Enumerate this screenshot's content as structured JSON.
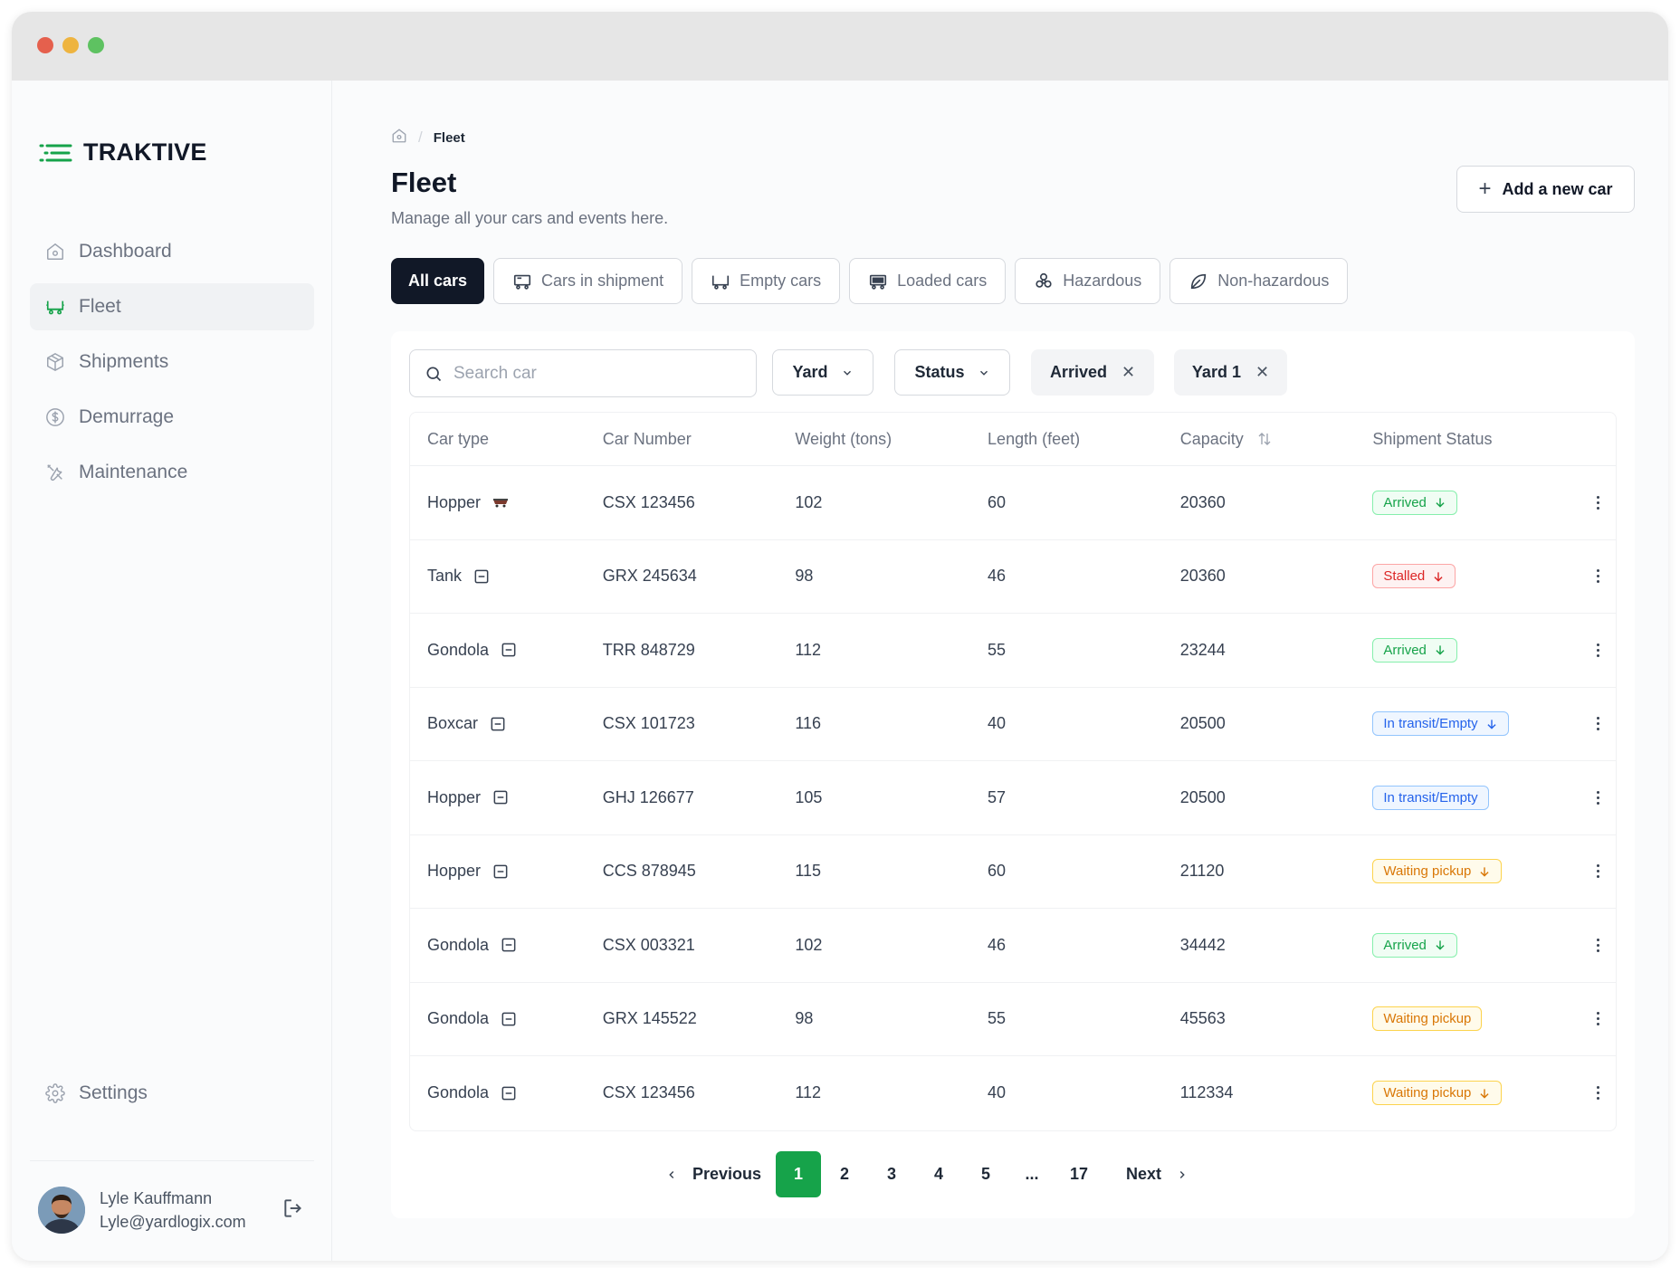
{
  "brand": {
    "name": "TRAKTIVE",
    "accent": "#16a34a"
  },
  "sidebar": {
    "items": [
      {
        "label": "Dashboard",
        "icon": "home-icon"
      },
      {
        "label": "Fleet",
        "icon": "train-car-icon"
      },
      {
        "label": "Shipments",
        "icon": "box-icon"
      },
      {
        "label": "Demurrage",
        "icon": "dollar-circle-icon"
      },
      {
        "label": "Maintenance",
        "icon": "tools-icon"
      }
    ],
    "active": "Fleet",
    "settings_label": "Settings",
    "user": {
      "name": "Lyle Kauffmann",
      "email": "Lyle@yardlogix.com"
    }
  },
  "breadcrumb": {
    "current": "Fleet"
  },
  "header": {
    "title": "Fleet",
    "subtitle": "Manage all your cars and events here.",
    "add_button": "Add a new car"
  },
  "tabs": [
    {
      "label": "All cars",
      "icon": "",
      "active": true
    },
    {
      "label": "Cars in shipment",
      "icon": "rail-car-icon",
      "active": false
    },
    {
      "label": "Empty cars",
      "icon": "rail-car-icon",
      "active": false
    },
    {
      "label": "Loaded cars",
      "icon": "rail-car-icon",
      "active": false
    },
    {
      "label": "Hazardous",
      "icon": "biohazard-icon",
      "active": false
    },
    {
      "label": "Non-hazardous",
      "icon": "leaf-icon",
      "active": false
    }
  ],
  "filters": {
    "search_placeholder": "Search car",
    "yard": "Yard",
    "status": "Status",
    "chips": [
      "Arrived",
      "Yard 1"
    ]
  },
  "table": {
    "columns": [
      "Car type",
      "Car Number",
      "Weight (tons)",
      "Length (feet)",
      "Capacity",
      "Shipment Status"
    ],
    "rows": [
      {
        "type": "Hopper",
        "number": "CSX 123456",
        "weight": "102",
        "length": "60",
        "capacity": "20360",
        "status": "Arrived",
        "status_kind": "green",
        "arrow": true
      },
      {
        "type": "Tank",
        "number": "GRX 245634",
        "weight": "98",
        "length": "46",
        "capacity": "20360",
        "status": "Stalled",
        "status_kind": "red",
        "arrow": true
      },
      {
        "type": "Gondola",
        "number": "TRR 848729",
        "weight": "112",
        "length": "55",
        "capacity": "23244",
        "status": "Arrived",
        "status_kind": "green",
        "arrow": true
      },
      {
        "type": "Boxcar",
        "number": "CSX 101723",
        "weight": "116",
        "length": "40",
        "capacity": "20500",
        "status": "In transit/Empty",
        "status_kind": "blue",
        "arrow": true
      },
      {
        "type": "Hopper",
        "number": "GHJ 126677",
        "weight": "105",
        "length": "57",
        "capacity": "20500",
        "status": "In transit/Empty",
        "status_kind": "blue",
        "arrow": false
      },
      {
        "type": "Hopper",
        "number": "CCS 878945",
        "weight": "115",
        "length": "60",
        "capacity": "21120",
        "status": "Waiting pickup",
        "status_kind": "orange",
        "arrow": true
      },
      {
        "type": "Gondola",
        "number": "CSX 003321",
        "weight": "102",
        "length": "46",
        "capacity": "34442",
        "status": "Arrived",
        "status_kind": "green",
        "arrow": true
      },
      {
        "type": "Gondola",
        "number": "GRX 145522",
        "weight": "98",
        "length": "55",
        "capacity": "45563",
        "status": "Waiting pickup",
        "status_kind": "orange",
        "arrow": false
      },
      {
        "type": "Gondola",
        "number": "CSX 123456",
        "weight": "112",
        "length": "40",
        "capacity": "112334",
        "status": "Waiting pickup",
        "status_kind": "orange",
        "arrow": true
      }
    ]
  },
  "status_colors": {
    "green": {
      "fg": "#16a34a",
      "bg": "#f0fdf4",
      "border": "#86efac"
    },
    "red": {
      "fg": "#dc2626",
      "bg": "#fef2f2",
      "border": "#fca5a5"
    },
    "blue": {
      "fg": "#2563eb",
      "bg": "#eff6ff",
      "border": "#93c5fd"
    },
    "orange": {
      "fg": "#d97706",
      "bg": "#fffbeb",
      "border": "#fcd34d"
    }
  },
  "pagination": {
    "previous": "Previous",
    "next": "Next",
    "pages": [
      "1",
      "2",
      "3",
      "4",
      "5",
      "...",
      "17"
    ],
    "current": "1"
  }
}
